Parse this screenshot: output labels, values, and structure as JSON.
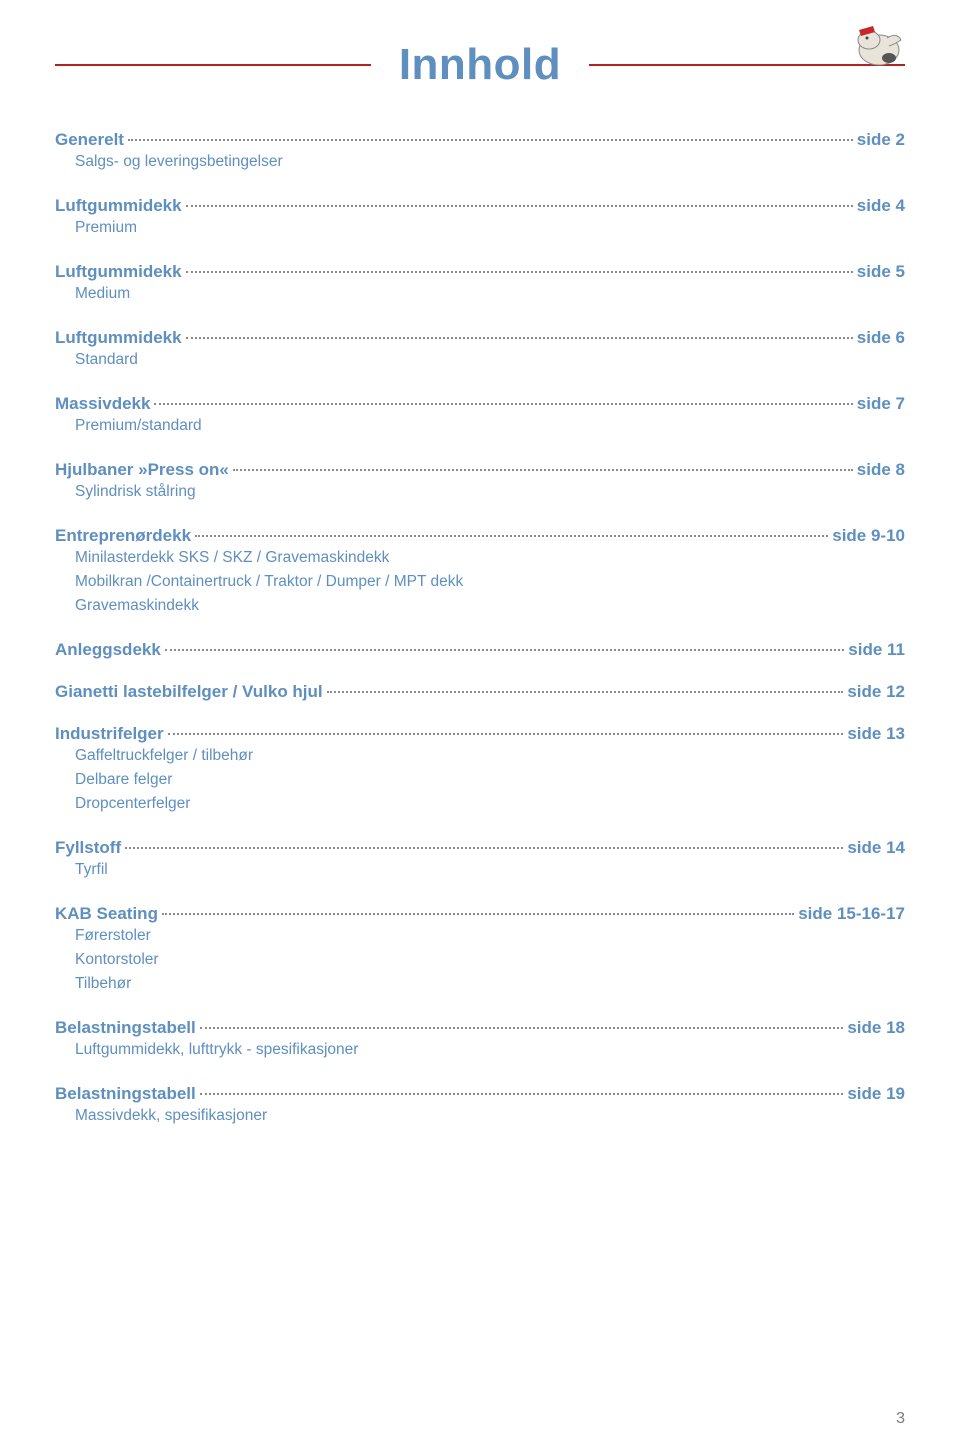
{
  "title": "Innhold",
  "title_color": "#5e8fbf",
  "rule_color": "#b22222",
  "page_number": "3",
  "toc": [
    {
      "label": "Generelt",
      "page": "side 2",
      "subs": [
        "Salgs- og leveringsbetingelser"
      ]
    },
    {
      "label": "Luftgummidekk",
      "page": "side 4",
      "subs": [
        "Premium"
      ]
    },
    {
      "label": "Luftgummidekk",
      "page": "side 5",
      "subs": [
        "Medium"
      ]
    },
    {
      "label": "Luftgummidekk",
      "page": "side 6",
      "subs": [
        "Standard"
      ]
    },
    {
      "label": "Massivdekk",
      "page": "side 7",
      "subs": [
        "Premium/standard"
      ]
    },
    {
      "label": "Hjulbaner »Press on«",
      "page": "side 8",
      "subs": [
        "Sylindrisk stålring"
      ]
    },
    {
      "label": "Entreprenørdekk",
      "page": "side 9-10",
      "subs": [
        "Minilasterdekk SKS / SKZ / Gravemaskindekk",
        "Mobilkran /Containertruck / Traktor / Dumper / MPT dekk",
        "Gravemaskindekk"
      ]
    },
    {
      "label": "Anleggsdekk",
      "page": "side 11",
      "subs": []
    },
    {
      "label": "Gianetti lastebilfelger / Vulko hjul",
      "page": "side 12",
      "subs": []
    },
    {
      "label": "Industrifelger",
      "page": "side 13",
      "subs": [
        "Gaffeltruckfelger / tilbehør",
        "Delbare felger",
        "Dropcenterfelger"
      ]
    },
    {
      "label": "Fyllstoff",
      "page": "side 14",
      "subs": [
        "Tyrfil"
      ]
    },
    {
      "label": "KAB Seating",
      "page": "side 15-16-17",
      "subs": [
        "Førerstoler",
        "Kontorstoler",
        "Tilbehør"
      ]
    },
    {
      "label": "Belastningstabell",
      "page": "side 18",
      "subs": [
        "Luftgummidekk, lufttrykk - spesifikasjoner"
      ]
    },
    {
      "label": "Belastningstabell",
      "page": "side 19",
      "subs": [
        "Massivdekk, spesifikasjoner"
      ]
    }
  ]
}
